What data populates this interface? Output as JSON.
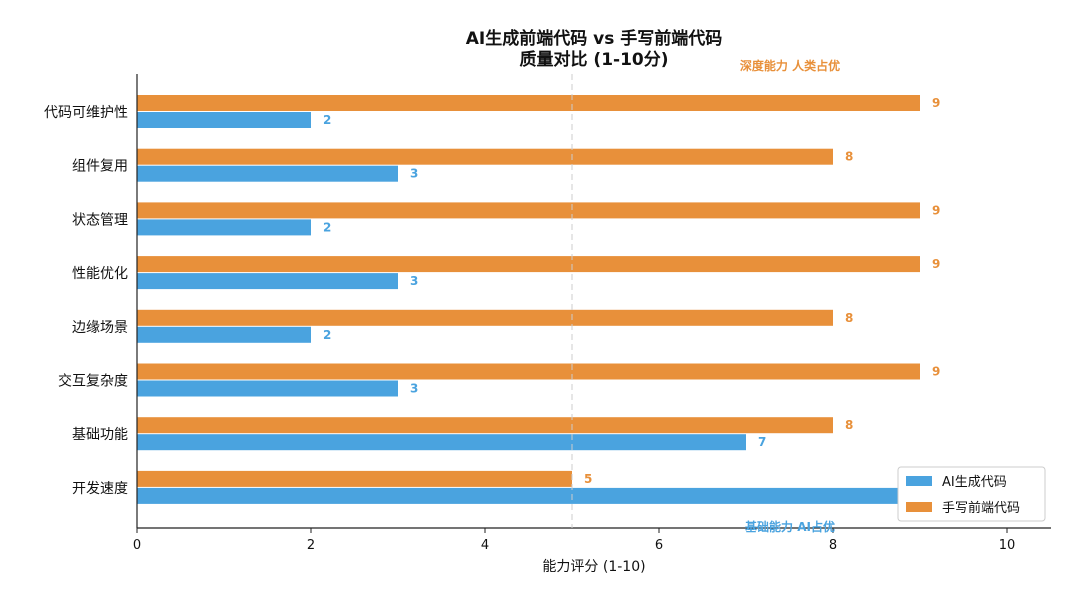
{
  "chart_data": {
    "type": "bar",
    "orientation": "horizontal",
    "title_lines": [
      "AI生成前端代码 vs 手写前端代码",
      "质量对比 (1-10分)"
    ],
    "xlabel": "能力评分 (1-10)",
    "xlim": [
      0,
      10.5
    ],
    "xticks": [
      0,
      2,
      4,
      6,
      8,
      10
    ],
    "categories": [
      "代码可维护性",
      "组件复用",
      "状态管理",
      "性能优化",
      "边缘场景",
      "交互复杂度",
      "基础功能",
      "开发速度"
    ],
    "series": [
      {
        "name": "AI生成代码",
        "color": "#4aa3df",
        "values": [
          2,
          3,
          2,
          3,
          2,
          3,
          7,
          9
        ],
        "labels": [
          "2",
          "3",
          "2",
          "3",
          "2",
          "3",
          "7",
          ""
        ]
      },
      {
        "name": "手写前端代码",
        "color": "#e8903a",
        "values": [
          9,
          8,
          9,
          9,
          8,
          9,
          8,
          5
        ],
        "labels": [
          "9",
          "8",
          "9",
          "9",
          "8",
          "9",
          "8",
          "5"
        ]
      }
    ],
    "reference_line": {
      "x": 5,
      "style": "dashed",
      "color": "#cccccc"
    },
    "annotations": [
      {
        "text": "深度能力 人类占优",
        "color": "#e8903a"
      },
      {
        "text": "基础能力 AI占优",
        "color": "#4aa3df"
      }
    ],
    "legend": {
      "position": "bottom-right"
    },
    "grid": false
  }
}
